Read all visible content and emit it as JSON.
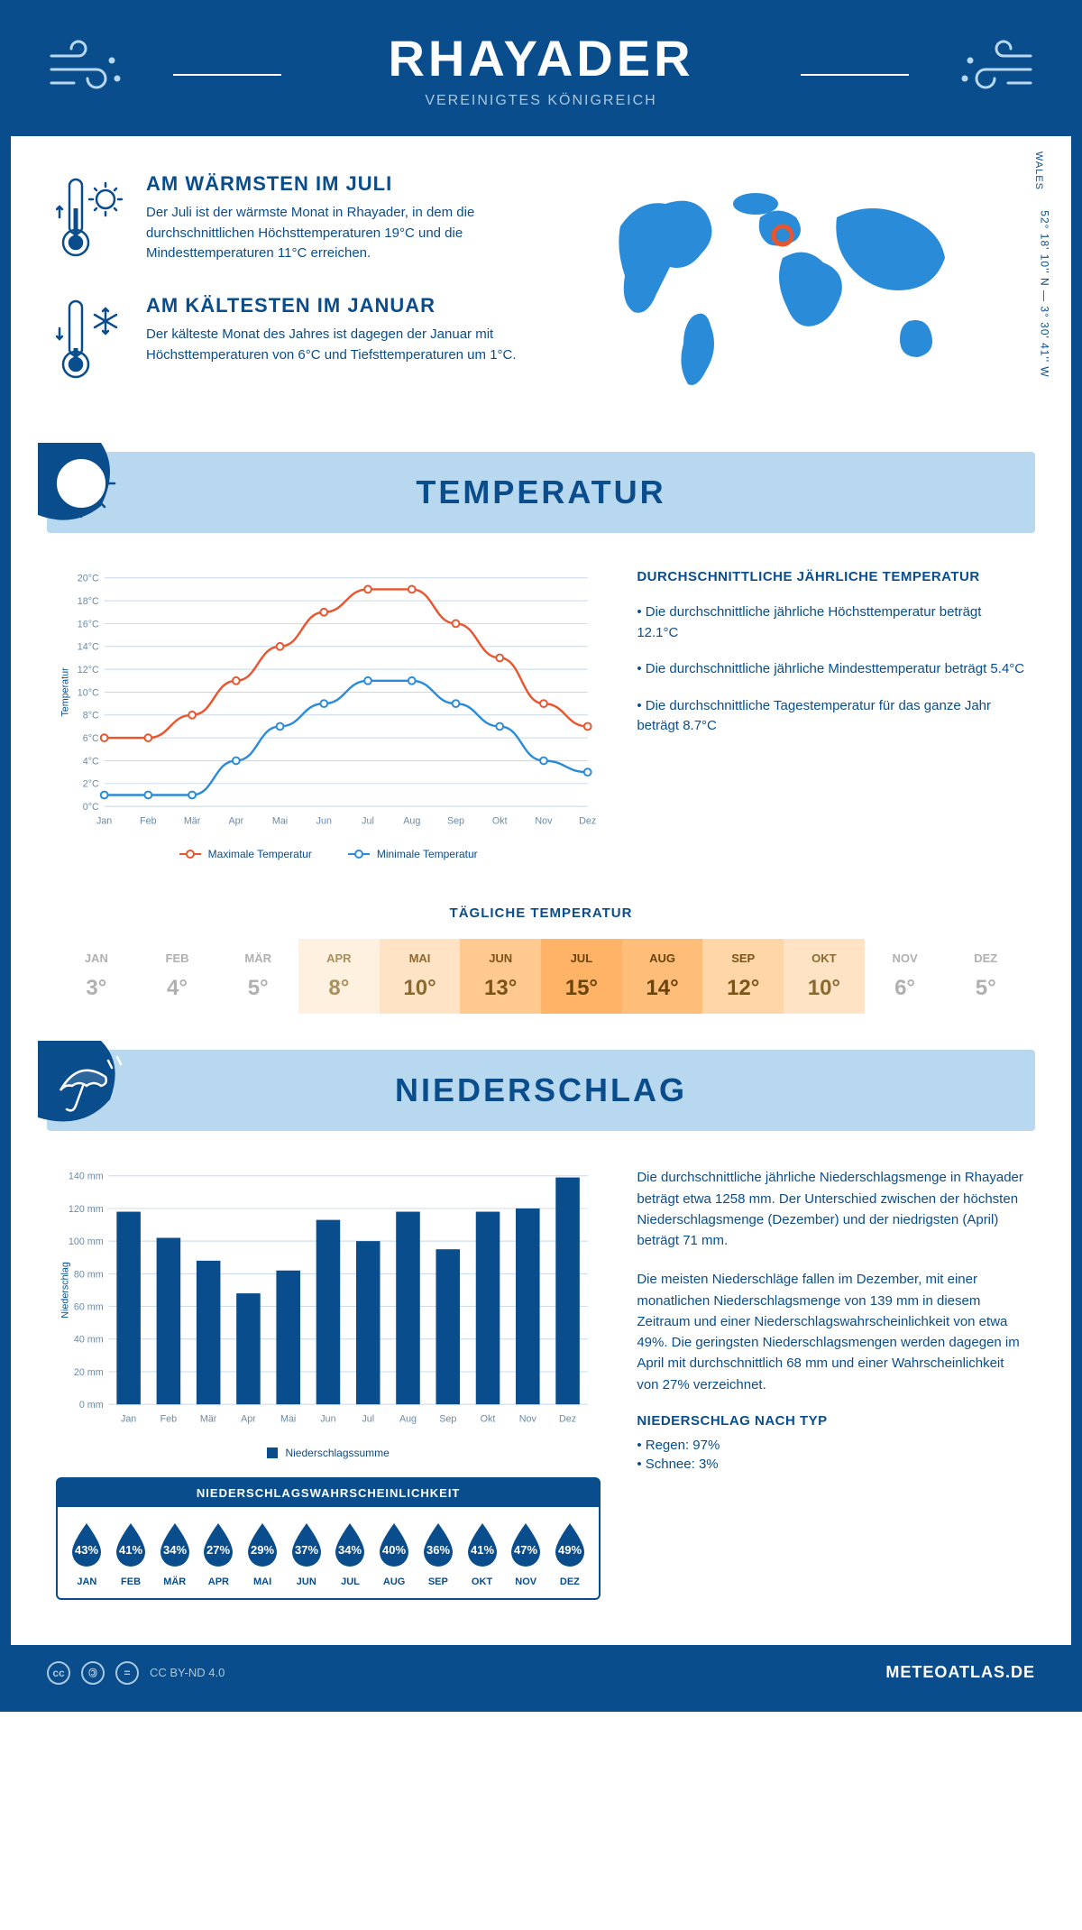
{
  "header": {
    "title": "RHAYADER",
    "subtitle": "VEREINIGTES KÖNIGREICH"
  },
  "location": {
    "coords": "52° 18' 10'' N — 3° 30' 41'' W",
    "region": "WALES",
    "marker_color": "#e8552f"
  },
  "intro": {
    "warm": {
      "title": "AM WÄRMSTEN IM JULI",
      "text": "Der Juli ist der wärmste Monat in Rhayader, in dem die durchschnittlichen Höchsttemperaturen 19°C und die Mindesttemperaturen 11°C erreichen."
    },
    "cold": {
      "title": "AM KÄLTESTEN IM JANUAR",
      "text": "Der kälteste Monat des Jahres ist dagegen der Januar mit Höchsttemperaturen von 6°C und Tiefsttemperaturen um 1°C."
    }
  },
  "colors": {
    "primary": "#0a4d8c",
    "light_blue": "#b8d8f0",
    "pale_blue": "#e8f2fa",
    "line_max": "#e8552f",
    "line_min": "#2a8cd8",
    "grid": "#c8d8e8",
    "tick_text": "#6a8aa8"
  },
  "sections": {
    "temperature_title": "TEMPERATUR",
    "precipitation_title": "NIEDERSCHLAG"
  },
  "months_short": [
    "Jan",
    "Feb",
    "Mär",
    "Apr",
    "Mai",
    "Jun",
    "Jul",
    "Aug",
    "Sep",
    "Okt",
    "Nov",
    "Dez"
  ],
  "months_upper": [
    "JAN",
    "FEB",
    "MÄR",
    "APR",
    "MAI",
    "JUN",
    "JUL",
    "AUG",
    "SEP",
    "OKT",
    "NOV",
    "DEZ"
  ],
  "temp_chart": {
    "type": "line",
    "y_label": "Temperatur",
    "ylim": [
      0,
      20
    ],
    "ytick_step": 2,
    "ytick_suffix": "°C",
    "max_values": [
      6,
      6,
      8,
      11,
      14,
      17,
      19,
      19,
      16,
      13,
      9,
      7
    ],
    "min_values": [
      1,
      1,
      1,
      4,
      7,
      9,
      11,
      11,
      9,
      7,
      4,
      3
    ],
    "legend_max": "Maximale Temperatur",
    "legend_min": "Minimale Temperatur",
    "line_width": 2.5,
    "marker": "circle"
  },
  "temp_info": {
    "title": "DURCHSCHNITTLICHE JÄHRLICHE TEMPERATUR",
    "items": [
      "• Die durchschnittliche jährliche Höchsttemperatur beträgt 12.1°C",
      "• Die durchschnittliche jährliche Mindesttemperatur beträgt 5.4°C",
      "• Die durchschnittliche Tagestemperatur für das ganze Jahr beträgt 8.7°C"
    ]
  },
  "daily_temp": {
    "title": "TÄGLICHE TEMPERATUR",
    "values": [
      3,
      4,
      5,
      8,
      10,
      13,
      15,
      14,
      12,
      10,
      6,
      5
    ],
    "bg_colors": [
      "#ffffff",
      "#ffffff",
      "#ffffff",
      "#fff1e0",
      "#ffe3c4",
      "#ffc98f",
      "#ffb366",
      "#ffbd7a",
      "#ffd6a8",
      "#ffe3c4",
      "#ffffff",
      "#ffffff"
    ],
    "text_colors": [
      "#b0b0b0",
      "#b0b0b0",
      "#b0b0b0",
      "#a8905c",
      "#8a6a30",
      "#7a5418",
      "#6a4408",
      "#6a4408",
      "#7a5418",
      "#8a6a30",
      "#b0b0b0",
      "#b0b0b0"
    ]
  },
  "precip_chart": {
    "type": "bar",
    "y_label": "Niederschlag",
    "ylim": [
      0,
      140
    ],
    "ytick_step": 20,
    "ytick_suffix": " mm",
    "values": [
      118,
      102,
      88,
      68,
      82,
      113,
      100,
      118,
      95,
      118,
      120,
      139
    ],
    "bar_color": "#0a4d8c",
    "bar_width": 0.6,
    "legend_label": "Niederschlagssumme"
  },
  "precip_info": {
    "para1": "Die durchschnittliche jährliche Niederschlagsmenge in Rhayader beträgt etwa 1258 mm. Der Unterschied zwischen der höchsten Niederschlagsmenge (Dezember) und der niedrigsten (April) beträgt 71 mm.",
    "para2": "Die meisten Niederschläge fallen im Dezember, mit einer monatlichen Niederschlagsmenge von 139 mm in diesem Zeitraum und einer Niederschlagswahrscheinlichkeit von etwa 49%. Die geringsten Niederschlagsmengen werden dagegen im April mit durchschnittlich 68 mm und einer Wahrscheinlichkeit von 27% verzeichnet.",
    "type_title": "NIEDERSCHLAG NACH TYP",
    "type_items": [
      "• Regen: 97%",
      "• Schnee: 3%"
    ]
  },
  "precip_prob": {
    "title": "NIEDERSCHLAGSWAHRSCHEINLICHKEIT",
    "values": [
      43,
      41,
      34,
      27,
      29,
      37,
      34,
      40,
      36,
      41,
      47,
      49
    ]
  },
  "footer": {
    "license": "CC BY-ND 4.0",
    "brand": "METEOATLAS.DE"
  }
}
